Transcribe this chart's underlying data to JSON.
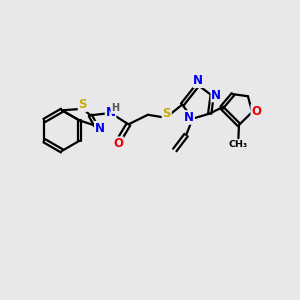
{
  "bg_color": "#e8e8eb",
  "atom_colors": {
    "C": "#000000",
    "N": "#0000ee",
    "O": "#ee0000",
    "S": "#ccaa00",
    "H": "#555555"
  },
  "bond_color": "#000000",
  "bond_width": 1.6,
  "figsize": [
    3.0,
    3.0
  ],
  "dpi": 100
}
